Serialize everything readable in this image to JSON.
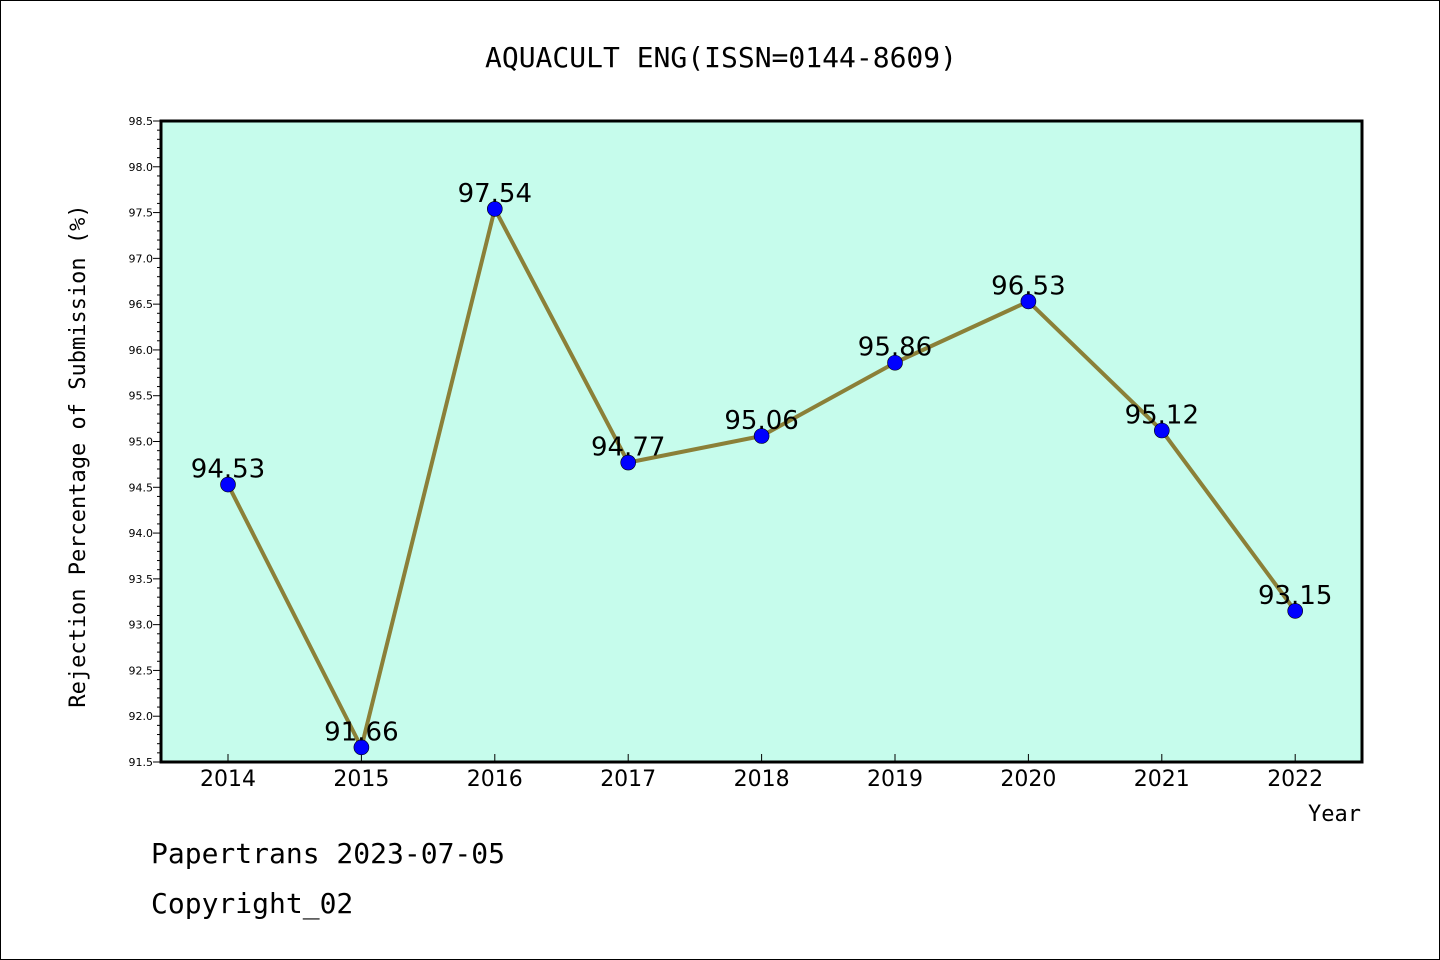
{
  "chart_data": {
    "type": "line",
    "title": "AQUACULT ENG(ISSN=0144-8609)",
    "xlabel": "Year",
    "ylabel": "Rejection Percentage of Submission (%)",
    "categories": [
      "2014",
      "2015",
      "2016",
      "2017",
      "2018",
      "2019",
      "2020",
      "2021",
      "2022"
    ],
    "values": [
      94.53,
      91.66,
      97.54,
      94.77,
      95.06,
      95.86,
      96.53,
      95.12,
      93.15
    ],
    "data_labels": [
      "94.53",
      "91.66",
      "97.54",
      "94.77",
      "95.06",
      "95.86",
      "96.53",
      "95.12",
      "93.15"
    ],
    "ylim": [
      91.5,
      98.5
    ],
    "yticks": [
      "91.5",
      "92.0",
      "92.5",
      "93.0",
      "93.5",
      "94.0",
      "94.5",
      "95.0",
      "95.5",
      "96.0",
      "96.5",
      "97.0",
      "97.5",
      "98.0",
      "98.5"
    ],
    "grid": false,
    "colors": {
      "plot_background": "#c6fcec",
      "line": "#8b8038",
      "marker": "#0000ff"
    }
  },
  "footer": {
    "line1": "Papertrans 2023-07-05",
    "line2": "Copyright_02"
  }
}
